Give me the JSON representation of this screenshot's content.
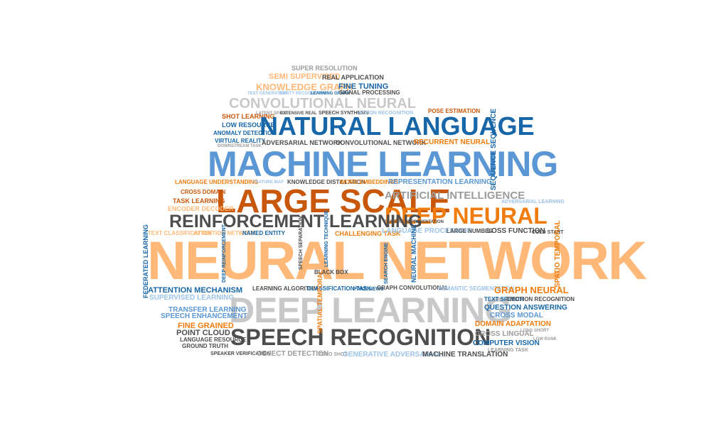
{
  "palette": {
    "light_orange": "#ffb877",
    "orange": "#f07c0e",
    "dark_orange": "#c9570a",
    "blue": "#5b97d4",
    "dark_blue": "#1766a8",
    "light_blue": "#9cc3ea",
    "gray": "#c8c8c8",
    "dark_gray": "#4d4d4d",
    "mid_gray": "#9b9b9b"
  },
  "words": {
    "neural_network": "NEURAL NETWORK",
    "machine_learning": "MACHINE LEARNING",
    "deep_learning": "DEEP LEARNING",
    "natural_language": "NATURAL LANGUAGE",
    "large_scale": "LARGE SCALE",
    "speech_recognition": "SPEECH RECOGNITION",
    "reinforcement_learning": "REINFORCEMENT LEARNING",
    "deep_neural": "DEEP NEURAL",
    "convolutional_neural": "CONVOLUTIONAL NEURAL",
    "artificial_intelligence": "ARTIFICIAL INTELLIGENCE",
    "knowledge_graph": "KNOWLEDGE GRAPH",
    "semi_supervised": "SEMI SUPERVISED",
    "super_resolution": "SUPER RESOLUTION",
    "real_application": "REAL APPLICATION",
    "fine_tuning": "FINE TUNING",
    "signal_processing": "SIGNAL PROCESSING",
    "shot_learning": "SHOT LEARNING",
    "pose_estimation": "POSE ESTIMATION",
    "low_resource": "LOW RESOURCE",
    "anomaly_detection": "ANOMALY DETECTION",
    "virtual_reality": "VIRTUAL REALITY",
    "adversarial_network": "ADVERSARIAL NETWORK",
    "convolutional_network": "CONVOLUTIONAL NETWORK",
    "recurrent_neural": "RECURRENT NEURAL",
    "knowledge_distillation": "KNOWLEDGE DISTILLATION",
    "word_embeddings": "WORD EMBEDDINGS",
    "representation_learning": "REPRESENTATION LEARNING",
    "language_understanding": "LANGUAGE UNDERSTANDING",
    "cross_domain": "CROSS DOMAIN",
    "task_learning": "TASK LEARNING",
    "encoder_decoder": "ENCODER DECODER",
    "text_classification": "TEXT CLASSIFICATION",
    "attention_network": "ATTENTION NETWORK",
    "named_entity": "NAMED ENTITY",
    "challenging_task": "CHALLENGING TASK",
    "language_processing": "LANGUAGE PROCESSING",
    "loss_function": "LOSS FUNCTION",
    "cold_start": "COLD START",
    "adversarial_learning": "ADVERSARIAL LEARNING",
    "black_box": "BLACK BOX",
    "attention_mechanism": "ATTENTION MECHANISM",
    "supervised_learning": "SUPERVISED LEARNING",
    "learning_algorithm": "LEARNING ALGORITHM",
    "classification_task": "CLASSIFICATION TASK",
    "fake_news": "FAKE NEWS",
    "graph_convolutional": "GRAPH CONVOLUTIONAL",
    "semantic_segmentation": "SEMANTIC SEGMENTATION",
    "graph_neural": "GRAPH NEURAL",
    "text_speech": "TEXT SPEECH",
    "emotion_recognition": "EMOTION RECOGNITION",
    "transfer_learning": "TRANSFER LEARNING",
    "speech_enhancement": "SPEECH ENHANCEMENT",
    "question_answering": "QUESTION ANSWERING",
    "cross_modal": "CROSS MODAL",
    "fine_grained": "FINE GRAINED",
    "point_cloud": "POINT CLOUD",
    "language_resource": "LANGUAGE RESOURCE",
    "ground_truth": "GROUND TRUTH",
    "domain_adaptation": "DOMAIN ADAPTATION",
    "cross_lingual": "CROSS LINGUAL",
    "computer_vision": "COMPUTER VISION",
    "speaker_verification": "SPEAKER VERIFICATION",
    "object_detection": "OBJECT DETECTION",
    "generative_adversarial": "GENERATIVE ADVERSARIAL",
    "machine_translation": "MACHINE TRANSLATION",
    "federated_learning": "FEDERATED LEARNING",
    "sequence_sequence": "SEQUENCE SEQUENCE",
    "spatio_temporal": "SPATIO TEMPORAL",
    "speech_synthesis": "SPEECH SYNTHESIS",
    "action_recognition": "ACTION RECOGNITION",
    "neural_machine": "NEURAL MACHINE",
    "feature_representation": "FEATURE REPRESENTATION",
    "large_number": "LARGE NUMBER",
    "learning_technique": "LEARNING TECHNIQUE",
    "speech_separation": "SPEECH SEPARATION",
    "deep_reinforcement": "DEEP REINFORCEMENT",
    "zero_shot": "ZERO SHOT",
    "entity_recognition": "ENTITY RECOGNITION",
    "text_generation": "TEXT GENERATION",
    "learning_graph": "LEARNING GRAPH",
    "latent_space": "LATENT SPACE",
    "extensive_real": "EXTENSIVE REAL",
    "downstream_task": "DOWNSTREAM TASK",
    "feature_map": "FEATURE MAP",
    "spatial_temporal": "SPATIAL TEMPORAL",
    "learning_task": "LEARNING TASK",
    "short_term": "SHORT TERM",
    "long_short": "LONG SHORT",
    "low_rank": "LOW RANK",
    "user_interface": "USER INTERFACE",
    "search_engine": "SEARCH ENGINE"
  }
}
